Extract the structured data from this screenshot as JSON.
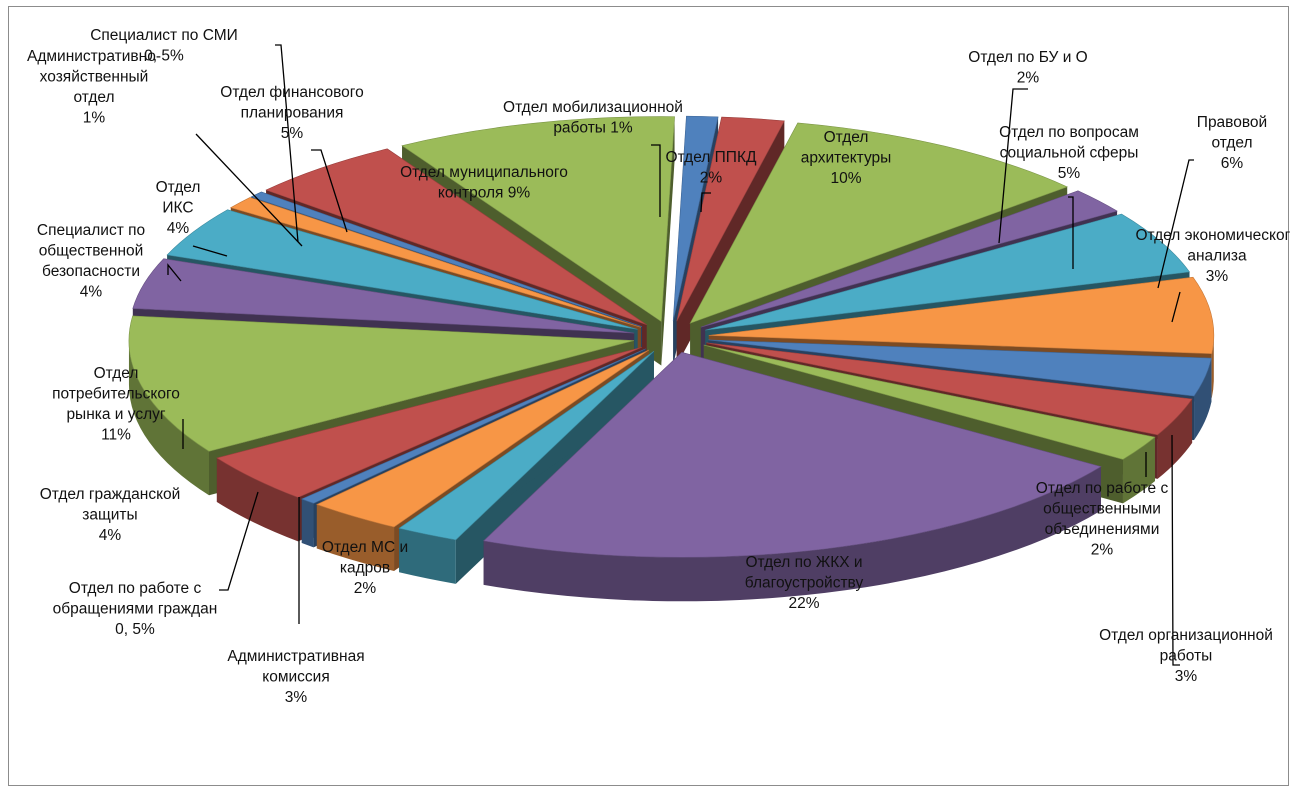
{
  "chart_data": {
    "type": "pie",
    "title": "",
    "style": "3d-exploded",
    "categories": [
      "Отдел мобилизационной работы",
      "Отдел ППКД",
      "Отдел архитектуры",
      "Отдел по БУ и О",
      "Отдел по вопросам социальной сферы",
      "Правовой отдел",
      "Отдел экономического анализа",
      "Отдел организационной работы",
      "Отдел по работе с общественными объединениями",
      "Отдел по ЖКХ и благоустройству",
      "Отдел МС и кадров",
      "Административная комиссия",
      "Отдел по работе с обращениями граждан",
      "Отдел гражданской защиты",
      "Отдел потребительского рынка и услуг",
      "Специалист по общественной безопасности",
      "Отдел ИКС",
      "Административно-хозяйственный отдел",
      "Специалист по СМИ",
      "Отдел финансового планирования",
      "Отдел муниципального контроля"
    ],
    "values": [
      1,
      2,
      10,
      2,
      5,
      6,
      3,
      3,
      2,
      22,
      2,
      3,
      0.5,
      4,
      11,
      4,
      4,
      1,
      0.5,
      5,
      9
    ],
    "labels": [
      [
        "Отдел мобилизационной",
        "работы 1%"
      ],
      [
        "Отдел ППКД",
        "2%"
      ],
      [
        "Отдел",
        "архитектуры",
        "10%"
      ],
      [
        "Отдел по БУ и О",
        "2%"
      ],
      [
        "Отдел по вопросам",
        "социальной сферы",
        "5%"
      ],
      [
        "Правовой",
        "отдел",
        "6%"
      ],
      [
        "Отдел экономического",
        "анализа",
        "3%"
      ],
      [
        "Отдел организационной",
        "работы",
        "3%"
      ],
      [
        "Отдел по работе с",
        "общественными",
        "объединениями",
        "2%"
      ],
      [
        "Отдел по ЖКХ и",
        "благоустройству",
        "22%"
      ],
      [
        "Отдел МС и",
        "кадров",
        "2%"
      ],
      [
        "Административная",
        "комиссия",
        "3%"
      ],
      [
        "Отдел по работе с",
        "обращениями граждан",
        "0, 5%"
      ],
      [
        "Отдел гражданской",
        "защиты",
        "4%"
      ],
      [
        "Отдел",
        "потребительского",
        "рынка и услуг",
        "11%"
      ],
      [
        "Специалист по",
        "общественной",
        "безопасности",
        "4%"
      ],
      [
        "Отдел",
        "ИКС",
        "4%"
      ],
      [
        "Административно-",
        "хозяйственный",
        "отдел",
        "1%"
      ],
      [
        "Специалист по СМИ",
        "0, 5%"
      ],
      [
        "Отдел финансового",
        "планирования",
        "5%"
      ],
      [
        "Отдел муниципального",
        "контроля  9%"
      ]
    ],
    "colors": [
      "#4f81bd",
      "#c0504d",
      "#9bbb59",
      "#8064a2",
      "#4bacc6",
      "#f79646",
      "#4f81bd",
      "#c0504d",
      "#9bbb59",
      "#8064a2",
      "#4bacc6",
      "#f79646",
      "#4f81bd",
      "#c0504d",
      "#9bbb59",
      "#8064a2",
      "#4bacc6",
      "#f79646",
      "#4f81bd",
      "#c0504d",
      "#9bbb59"
    ],
    "legend": "none"
  }
}
